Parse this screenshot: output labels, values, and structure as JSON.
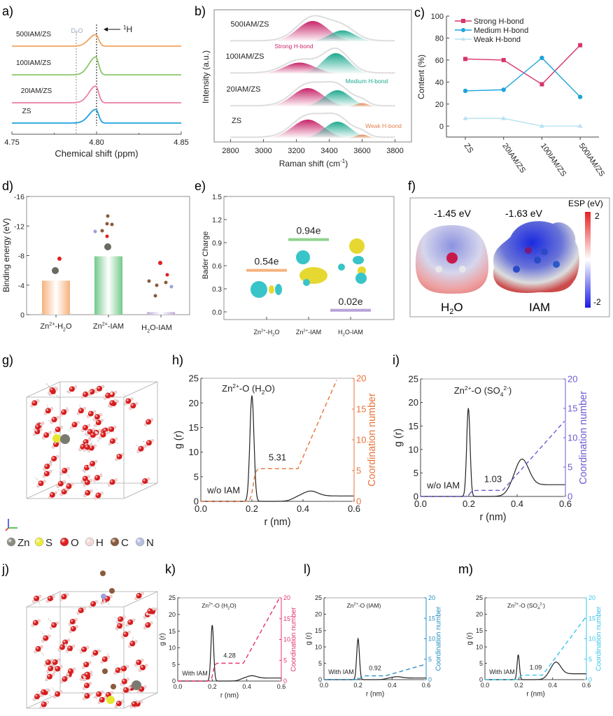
{
  "panels": {
    "a": "a)",
    "b": "b)",
    "c": "c)",
    "d": "d)",
    "e": "e)",
    "f": "f)",
    "g": "g)",
    "h": "h)",
    "i": "i)",
    "j": "j)",
    "k": "k)",
    "l": "l)",
    "m": "m)"
  },
  "chart_data": [
    {
      "id": "a",
      "type": "line",
      "title": "",
      "xlabel": "Chemical shift (ppm)",
      "ylabel": "",
      "xlim": [
        4.75,
        4.85
      ],
      "xticks": [
        "4.75",
        "4.80",
        "4.85"
      ],
      "annotations": {
        "ref_label": "D2O",
        "ref_x": 4.788,
        "peak_label": "1H",
        "peak_x": 4.8
      },
      "series": [
        {
          "name": "500IAM/ZS",
          "color": "#f2a35e",
          "peak_x": 4.7995,
          "rel_height": 0.55
        },
        {
          "name": "100IAM/ZS",
          "color": "#8cc66a",
          "peak_x": 4.7995,
          "rel_height": 0.85
        },
        {
          "name": "20IAM/ZS",
          "color": "#ec7fa6",
          "peak_x": 4.7995,
          "rel_height": 0.8
        },
        {
          "name": "ZS",
          "color": "#1ea0dc",
          "peak_x": 4.7995,
          "rel_height": 0.65
        }
      ]
    },
    {
      "id": "b",
      "type": "area",
      "xlabel": "Raman shift (cm-1)",
      "ylabel": "Intensity (a.u.)",
      "xlim": [
        2700,
        3900
      ],
      "xticks": [
        "2800",
        "3000",
        "3200",
        "3400",
        "3600",
        "3800"
      ],
      "annotations": [
        "Strong H-bond",
        "Medium H-bond",
        "Weak H-bond"
      ],
      "annotation_colors": [
        "#c8256a",
        "#1ea98f",
        "#e4834f"
      ],
      "series": [
        {
          "name": "500IAM/ZS",
          "strong": {
            "center": 3300,
            "height": 1.0
          },
          "medium": {
            "center": 3480,
            "height": 0.55
          },
          "weak": null
        },
        {
          "name": "100IAM/ZS",
          "strong": {
            "center": 3220,
            "height": 0.55
          },
          "medium": {
            "center": 3440,
            "height": 1.0
          },
          "weak": null
        },
        {
          "name": "20IAM/ZS",
          "strong": {
            "center": 3270,
            "height": 0.9
          },
          "medium": {
            "center": 3450,
            "height": 0.8
          },
          "weak": {
            "center": 3600,
            "height": 0.18
          }
        },
        {
          "name": "ZS",
          "strong": {
            "center": 3270,
            "height": 0.9
          },
          "medium": {
            "center": 3450,
            "height": 0.8
          },
          "weak": {
            "center": 3600,
            "height": 0.18
          }
        }
      ]
    },
    {
      "id": "c",
      "type": "line",
      "xlabel": "",
      "ylabel": "Content (%)",
      "ylim": [
        -10,
        100
      ],
      "yticks": [
        "0",
        "20",
        "40",
        "60",
        "80",
        "100"
      ],
      "categories": [
        "ZS",
        "20IAM/ZS",
        "100IAM/ZS",
        "500IAM/ZS"
      ],
      "series": [
        {
          "name": "Strong H-bond",
          "color": "#d6336c",
          "marker": "square",
          "values": [
            61,
            60,
            38,
            73.5
          ]
        },
        {
          "name": "Medium H-bond",
          "color": "#1fa4db",
          "marker": "circle",
          "values": [
            32,
            33,
            62,
            26.5
          ]
        },
        {
          "name": "Weak H-bond",
          "color": "#b6e2f2",
          "marker": "triangle",
          "values": [
            7,
            7,
            0,
            0
          ]
        }
      ],
      "legend": "top-left"
    },
    {
      "id": "d",
      "type": "bar",
      "ylabel": "Binding energy (eV)",
      "ylim": [
        0,
        -16
      ],
      "yticks": [
        "0",
        "-4",
        "-8",
        "-12",
        "-16"
      ],
      "categories": [
        "Zn2+-H2O",
        "Zn2+-IAM",
        "H2O-IAM"
      ],
      "values": [
        -4.6,
        -7.9,
        -0.35
      ],
      "colors": [
        "#f6b27e",
        "#74c98a",
        "#c2addb"
      ]
    },
    {
      "id": "e",
      "type": "bar",
      "ylabel": "Bader Charge",
      "ylim": [
        -0.1,
        1.5
      ],
      "yticks": [
        "0.0",
        "0.3",
        "0.6",
        "0.9",
        "1.2",
        "1.5"
      ],
      "categories": [
        "Zn2+-H2O",
        "Zn2+-IAM",
        "H2O-IAM"
      ],
      "values": [
        0.54,
        0.94,
        0.02
      ],
      "data_labels": [
        "0.54e",
        "0.94e",
        "0.02e"
      ],
      "colors": [
        "#f6b27e",
        "#8fd28e",
        "#b9a3d8"
      ]
    },
    {
      "id": "h",
      "type": "line",
      "title": "Zn2+-O (H2O)",
      "xlabel": "r (nm)",
      "ylabel": "g (r)",
      "y2label": "Coordination number",
      "xlim": [
        0,
        0.6
      ],
      "ylim": [
        0,
        25
      ],
      "y2lim": [
        0,
        20
      ],
      "xticks": [
        "0.0",
        "0.2",
        "0.4",
        "0.6"
      ],
      "yticks": [
        "0",
        "5",
        "10",
        "15",
        "20",
        "25"
      ],
      "y2ticks": [
        "0",
        "5",
        "10",
        "15",
        "20"
      ],
      "legend_text": "w/o IAM",
      "cn_label": "5.31",
      "cn_color": "#e8733a",
      "gr": {
        "peak1_x": 0.2,
        "peak1_h": 21.5,
        "peak1_w": 0.008,
        "peak2_x": 0.43,
        "peak2_h": 2.1,
        "plateau": 1.1
      },
      "cn": {
        "step_x": 0.21,
        "plateau": 5.31,
        "rise_start": 0.38,
        "end_x": 0.535,
        "end_y": 20
      }
    },
    {
      "id": "i",
      "type": "line",
      "title": "Zn2+-O (SO4 2-)",
      "xlabel": "r (nm)",
      "ylabel": "g (r)",
      "y2label": "Coordination number",
      "xlim": [
        0,
        0.6
      ],
      "ylim": [
        0,
        25
      ],
      "y2lim": [
        0,
        20
      ],
      "xticks": [
        "0.0",
        "0.2",
        "0.4",
        "0.6"
      ],
      "yticks": [
        "0",
        "5",
        "10",
        "15",
        "20",
        "25"
      ],
      "y2ticks": [
        "0",
        "5",
        "10",
        "15",
        "20"
      ],
      "legend_text": "w/o IAM",
      "cn_label": "1.03",
      "cn_color": "#6a5bd1",
      "gr": {
        "peak1_x": 0.198,
        "peak1_h": 18.8,
        "peak1_w": 0.007,
        "peak2_x": 0.42,
        "peak2_h": 8.0,
        "plateau": 2.5
      },
      "cn": {
        "step_x": 0.21,
        "plateau": 1.03,
        "rise_start": 0.34,
        "end_x": 0.6,
        "end_y": 13
      }
    },
    {
      "id": "k",
      "type": "line",
      "title": "Zn2+-O (H2O)",
      "xlabel": "r (nm)",
      "ylabel": "g (r)",
      "y2label": "Coordination number",
      "xlim": [
        0,
        0.6
      ],
      "ylim": [
        0,
        25
      ],
      "y2lim": [
        0,
        20
      ],
      "xticks": [
        "0.0",
        "0.2",
        "0.4",
        "0.6"
      ],
      "yticks": [
        "0",
        "5",
        "10",
        "15",
        "20",
        "25"
      ],
      "y2ticks": [
        "0",
        "5",
        "10",
        "15",
        "20"
      ],
      "legend_text": "With IAM",
      "cn_label": "4.28",
      "cn_color": "#e5336f",
      "gr": {
        "peak1_x": 0.2,
        "peak1_h": 16.8,
        "peak1_w": 0.008,
        "peak2_x": 0.43,
        "peak2_h": 1.6,
        "plateau": 0.9
      },
      "cn": {
        "step_x": 0.21,
        "plateau": 4.28,
        "rise_start": 0.38,
        "end_x": 0.59,
        "end_y": 20
      }
    },
    {
      "id": "l",
      "type": "line",
      "title": "Zn2+-O (IAM)",
      "xlabel": "r (nm)",
      "ylabel": "g (r)",
      "y2label": "Coordination number",
      "xlim": [
        0,
        0.6
      ],
      "ylim": [
        0,
        25
      ],
      "y2lim": [
        0,
        20
      ],
      "xticks": [
        "0.0",
        "0.2",
        "0.4",
        "0.6"
      ],
      "yticks": [
        "0",
        "5",
        "10",
        "15",
        "20",
        "25"
      ],
      "y2ticks": [
        "0",
        "5",
        "10",
        "15",
        "20"
      ],
      "legend_text": "With IAM",
      "cn_label": "0.92",
      "cn_color": "#2a8fc3",
      "gr": {
        "peak1_x": 0.2,
        "peak1_h": 12.5,
        "peak1_w": 0.008,
        "peak2_x": 0.43,
        "peak2_h": 0.9,
        "plateau": 0.5
      },
      "cn": {
        "step_x": 0.22,
        "plateau": 0.92,
        "rise_start": 0.36,
        "end_x": 0.6,
        "end_y": 3.8
      }
    },
    {
      "id": "m",
      "type": "line",
      "title": "Zn2+-O (SO4 2-)",
      "xlabel": "r (nm)",
      "ylabel": "g (r)",
      "y2label": "Coordination number",
      "xlim": [
        0,
        0.6
      ],
      "ylim": [
        0,
        25
      ],
      "y2lim": [
        0,
        20
      ],
      "xticks": [
        "0.0",
        "0.2",
        "0.4",
        "0.6"
      ],
      "yticks": [
        "0",
        "5",
        "10",
        "15",
        "20",
        "25"
      ],
      "y2ticks": [
        "0",
        "5",
        "10",
        "15",
        "20"
      ],
      "legend_text": "With IAM",
      "cn_label": "1.09",
      "cn_color": "#3cc4ec",
      "gr": {
        "peak1_x": 0.197,
        "peak1_h": 7.6,
        "peak1_w": 0.007,
        "peak2_x": 0.42,
        "peak2_h": 5.4,
        "plateau": 1.8
      },
      "cn": {
        "step_x": 0.21,
        "plateau": 1.09,
        "rise_start": 0.34,
        "end_x": 0.6,
        "end_y": 15.5
      }
    }
  ],
  "panel_f": {
    "h2o_value": "-1.45 eV",
    "iam_value": "-1.63 eV",
    "h2o_label": "H2O",
    "iam_label": "IAM",
    "colorbar_title": "ESP (eV)",
    "colorbar_max": "2",
    "colorbar_min": "-2"
  },
  "panel_d_labels": {
    "cat": [
      "Zn",
      "2+",
      "-H",
      "2",
      "O"
    ]
  },
  "atom_legend": [
    {
      "symbol": "Zn",
      "color": "#8a8a80"
    },
    {
      "symbol": "S",
      "color": "#ecec3a"
    },
    {
      "symbol": "O",
      "color": "#e02020"
    },
    {
      "symbol": "H",
      "color": "#f4d8d8"
    },
    {
      "symbol": "C",
      "color": "#8a5a3a"
    },
    {
      "symbol": "N",
      "color": "#b8c0e0"
    }
  ],
  "colors": {
    "axis": "#333333",
    "text": "#222222"
  }
}
